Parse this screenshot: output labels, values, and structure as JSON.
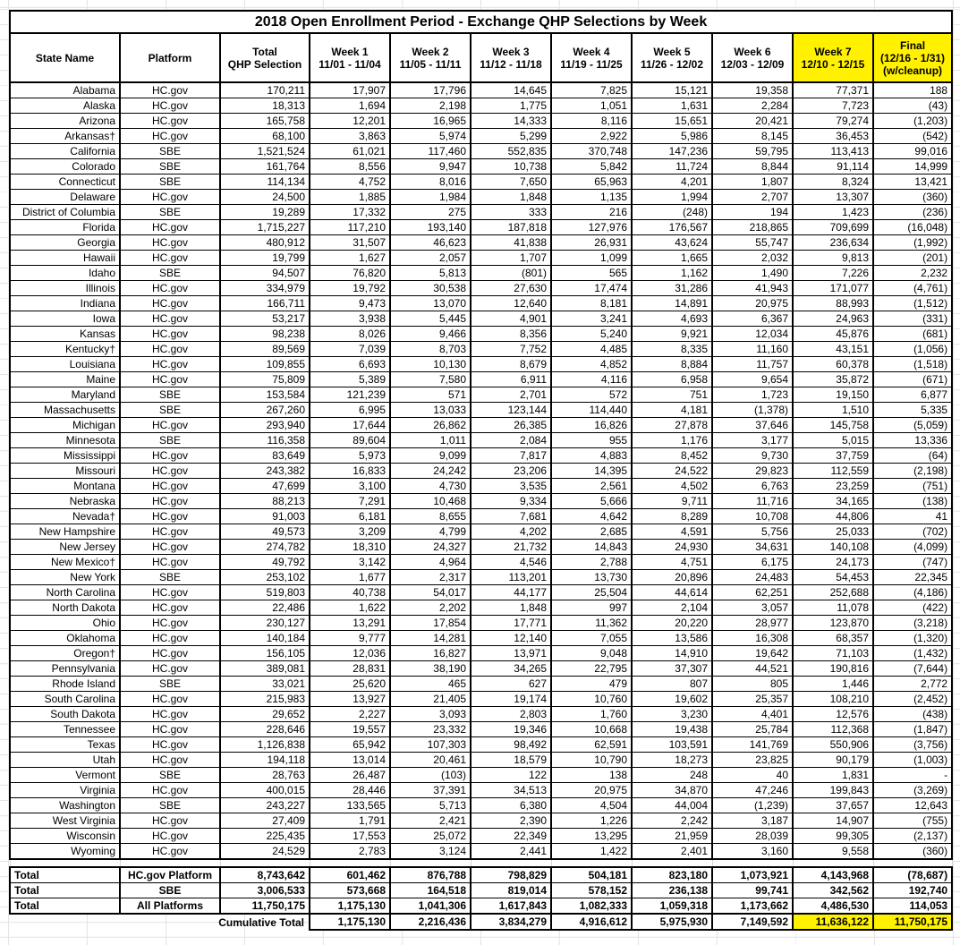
{
  "title": "2018 Open Enrollment Period - Exchange QHP Selections by Week",
  "colors": {
    "highlight": "#FFF100"
  },
  "columns": [
    "State Name",
    "Platform",
    "Total\nQHP Selection",
    "Week 1\n11/01 - 11/04",
    "Week 2\n11/05 - 11/11",
    "Week 3\n11/12 - 11/18",
    "Week 4\n11/19 - 11/25",
    "Week 5\n11/26 - 12/02",
    "Week 6\n12/03 - 12/09",
    "Week 7\n12/10 - 12/15",
    "Final\n(12/16 - 1/31)\n(w/cleanup)"
  ],
  "rows": [
    [
      "Alabama",
      "HC.gov",
      "170,211",
      "17,907",
      "17,796",
      "14,645",
      "7,825",
      "15,121",
      "19,358",
      "77,371",
      "188"
    ],
    [
      "Alaska",
      "HC.gov",
      "18,313",
      "1,694",
      "2,198",
      "1,775",
      "1,051",
      "1,631",
      "2,284",
      "7,723",
      "(43)"
    ],
    [
      "Arizona",
      "HC.gov",
      "165,758",
      "12,201",
      "16,965",
      "14,333",
      "8,116",
      "15,651",
      "20,421",
      "79,274",
      "(1,203)"
    ],
    [
      "Arkansas†",
      "HC.gov",
      "68,100",
      "3,863",
      "5,974",
      "5,299",
      "2,922",
      "5,986",
      "8,145",
      "36,453",
      "(542)"
    ],
    [
      "California",
      "SBE",
      "1,521,524",
      "61,021",
      "117,460",
      "552,835",
      "370,748",
      "147,236",
      "59,795",
      "113,413",
      "99,016"
    ],
    [
      "Colorado",
      "SBE",
      "161,764",
      "8,556",
      "9,947",
      "10,738",
      "5,842",
      "11,724",
      "8,844",
      "91,114",
      "14,999"
    ],
    [
      "Connecticut",
      "SBE",
      "114,134",
      "4,752",
      "8,016",
      "7,650",
      "65,963",
      "4,201",
      "1,807",
      "8,324",
      "13,421"
    ],
    [
      "Delaware",
      "HC.gov",
      "24,500",
      "1,885",
      "1,984",
      "1,848",
      "1,135",
      "1,994",
      "2,707",
      "13,307",
      "(360)"
    ],
    [
      "District of Columbia",
      "SBE",
      "19,289",
      "17,332",
      "275",
      "333",
      "216",
      "(248)",
      "194",
      "1,423",
      "(236)"
    ],
    [
      "Florida",
      "HC.gov",
      "1,715,227",
      "117,210",
      "193,140",
      "187,818",
      "127,976",
      "176,567",
      "218,865",
      "709,699",
      "(16,048)"
    ],
    [
      "Georgia",
      "HC.gov",
      "480,912",
      "31,507",
      "46,623",
      "41,838",
      "26,931",
      "43,624",
      "55,747",
      "236,634",
      "(1,992)"
    ],
    [
      "Hawaii",
      "HC.gov",
      "19,799",
      "1,627",
      "2,057",
      "1,707",
      "1,099",
      "1,665",
      "2,032",
      "9,813",
      "(201)"
    ],
    [
      "Idaho",
      "SBE",
      "94,507",
      "76,820",
      "5,813",
      "(801)",
      "565",
      "1,162",
      "1,490",
      "7,226",
      "2,232"
    ],
    [
      "Illinois",
      "HC.gov",
      "334,979",
      "19,792",
      "30,538",
      "27,630",
      "17,474",
      "31,286",
      "41,943",
      "171,077",
      "(4,761)"
    ],
    [
      "Indiana",
      "HC.gov",
      "166,711",
      "9,473",
      "13,070",
      "12,640",
      "8,181",
      "14,891",
      "20,975",
      "88,993",
      "(1,512)"
    ],
    [
      "Iowa",
      "HC.gov",
      "53,217",
      "3,938",
      "5,445",
      "4,901",
      "3,241",
      "4,693",
      "6,367",
      "24,963",
      "(331)"
    ],
    [
      "Kansas",
      "HC.gov",
      "98,238",
      "8,026",
      "9,466",
      "8,356",
      "5,240",
      "9,921",
      "12,034",
      "45,876",
      "(681)"
    ],
    [
      "Kentucky†",
      "HC.gov",
      "89,569",
      "7,039",
      "8,703",
      "7,752",
      "4,485",
      "8,335",
      "11,160",
      "43,151",
      "(1,056)"
    ],
    [
      "Louisiana",
      "HC.gov",
      "109,855",
      "6,693",
      "10,130",
      "8,679",
      "4,852",
      "8,884",
      "11,757",
      "60,378",
      "(1,518)"
    ],
    [
      "Maine",
      "HC.gov",
      "75,809",
      "5,389",
      "7,580",
      "6,911",
      "4,116",
      "6,958",
      "9,654",
      "35,872",
      "(671)"
    ],
    [
      "Maryland",
      "SBE",
      "153,584",
      "121,239",
      "571",
      "2,701",
      "572",
      "751",
      "1,723",
      "19,150",
      "6,877"
    ],
    [
      "Massachusetts",
      "SBE",
      "267,260",
      "6,995",
      "13,033",
      "123,144",
      "114,440",
      "4,181",
      "(1,378)",
      "1,510",
      "5,335"
    ],
    [
      "Michigan",
      "HC.gov",
      "293,940",
      "17,644",
      "26,862",
      "26,385",
      "16,826",
      "27,878",
      "37,646",
      "145,758",
      "(5,059)"
    ],
    [
      "Minnesota",
      "SBE",
      "116,358",
      "89,604",
      "1,011",
      "2,084",
      "955",
      "1,176",
      "3,177",
      "5,015",
      "13,336"
    ],
    [
      "Mississippi",
      "HC.gov",
      "83,649",
      "5,973",
      "9,099",
      "7,817",
      "4,883",
      "8,452",
      "9,730",
      "37,759",
      "(64)"
    ],
    [
      "Missouri",
      "HC.gov",
      "243,382",
      "16,833",
      "24,242",
      "23,206",
      "14,395",
      "24,522",
      "29,823",
      "112,559",
      "(2,198)"
    ],
    [
      "Montana",
      "HC.gov",
      "47,699",
      "3,100",
      "4,730",
      "3,535",
      "2,561",
      "4,502",
      "6,763",
      "23,259",
      "(751)"
    ],
    [
      "Nebraska",
      "HC.gov",
      "88,213",
      "7,291",
      "10,468",
      "9,334",
      "5,666",
      "9,711",
      "11,716",
      "34,165",
      "(138)"
    ],
    [
      "Nevada†",
      "HC.gov",
      "91,003",
      "6,181",
      "8,655",
      "7,681",
      "4,642",
      "8,289",
      "10,708",
      "44,806",
      "41"
    ],
    [
      "New Hampshire",
      "HC.gov",
      "49,573",
      "3,209",
      "4,799",
      "4,202",
      "2,685",
      "4,591",
      "5,756",
      "25,033",
      "(702)"
    ],
    [
      "New Jersey",
      "HC.gov",
      "274,782",
      "18,310",
      "24,327",
      "21,732",
      "14,843",
      "24,930",
      "34,631",
      "140,108",
      "(4,099)"
    ],
    [
      "New Mexico†",
      "HC.gov",
      "49,792",
      "3,142",
      "4,964",
      "4,546",
      "2,788",
      "4,751",
      "6,175",
      "24,173",
      "(747)"
    ],
    [
      "New York",
      "SBE",
      "253,102",
      "1,677",
      "2,317",
      "113,201",
      "13,730",
      "20,896",
      "24,483",
      "54,453",
      "22,345"
    ],
    [
      "North Carolina",
      "HC.gov",
      "519,803",
      "40,738",
      "54,017",
      "44,177",
      "25,504",
      "44,614",
      "62,251",
      "252,688",
      "(4,186)"
    ],
    [
      "North Dakota",
      "HC.gov",
      "22,486",
      "1,622",
      "2,202",
      "1,848",
      "997",
      "2,104",
      "3,057",
      "11,078",
      "(422)"
    ],
    [
      "Ohio",
      "HC.gov",
      "230,127",
      "13,291",
      "17,854",
      "17,771",
      "11,362",
      "20,220",
      "28,977",
      "123,870",
      "(3,218)"
    ],
    [
      "Oklahoma",
      "HC.gov",
      "140,184",
      "9,777",
      "14,281",
      "12,140",
      "7,055",
      "13,586",
      "16,308",
      "68,357",
      "(1,320)"
    ],
    [
      "Oregon†",
      "HC.gov",
      "156,105",
      "12,036",
      "16,827",
      "13,971",
      "9,048",
      "14,910",
      "19,642",
      "71,103",
      "(1,432)"
    ],
    [
      "Pennsylvania",
      "HC.gov",
      "389,081",
      "28,831",
      "38,190",
      "34,265",
      "22,795",
      "37,307",
      "44,521",
      "190,816",
      "(7,644)"
    ],
    [
      "Rhode Island",
      "SBE",
      "33,021",
      "25,620",
      "465",
      "627",
      "479",
      "807",
      "805",
      "1,446",
      "2,772"
    ],
    [
      "South Carolina",
      "HC.gov",
      "215,983",
      "13,927",
      "21,405",
      "19,174",
      "10,760",
      "19,602",
      "25,357",
      "108,210",
      "(2,452)"
    ],
    [
      "South Dakota",
      "HC.gov",
      "29,652",
      "2,227",
      "3,093",
      "2,803",
      "1,760",
      "3,230",
      "4,401",
      "12,576",
      "(438)"
    ],
    [
      "Tennessee",
      "HC.gov",
      "228,646",
      "19,557",
      "23,332",
      "19,346",
      "10,668",
      "19,438",
      "25,784",
      "112,368",
      "(1,847)"
    ],
    [
      "Texas",
      "HC.gov",
      "1,126,838",
      "65,942",
      "107,303",
      "98,492",
      "62,591",
      "103,591",
      "141,769",
      "550,906",
      "(3,756)"
    ],
    [
      "Utah",
      "HC.gov",
      "194,118",
      "13,014",
      "20,461",
      "18,579",
      "10,790",
      "18,273",
      "23,825",
      "90,179",
      "(1,003)"
    ],
    [
      "Vermont",
      "SBE",
      "28,763",
      "26,487",
      "(103)",
      "122",
      "138",
      "248",
      "40",
      "1,831",
      "-"
    ],
    [
      "Virginia",
      "HC.gov",
      "400,015",
      "28,446",
      "37,391",
      "34,513",
      "20,975",
      "34,870",
      "47,246",
      "199,843",
      "(3,269)"
    ],
    [
      "Washington",
      "SBE",
      "243,227",
      "133,565",
      "5,713",
      "6,380",
      "4,504",
      "44,004",
      "(1,239)",
      "37,657",
      "12,643"
    ],
    [
      "West Virginia",
      "HC.gov",
      "27,409",
      "1,791",
      "2,421",
      "2,390",
      "1,226",
      "2,242",
      "3,187",
      "14,907",
      "(755)"
    ],
    [
      "Wisconsin",
      "HC.gov",
      "225,435",
      "17,553",
      "25,072",
      "22,349",
      "13,295",
      "21,959",
      "28,039",
      "99,305",
      "(2,137)"
    ],
    [
      "Wyoming",
      "HC.gov",
      "24,529",
      "2,783",
      "3,124",
      "2,441",
      "1,422",
      "2,401",
      "3,160",
      "9,558",
      "(360)"
    ]
  ],
  "totals": [
    [
      "Total",
      "HC.gov Platform",
      "8,743,642",
      "601,462",
      "876,788",
      "798,829",
      "504,181",
      "823,180",
      "1,073,921",
      "4,143,968",
      "(78,687)"
    ],
    [
      "Total",
      "SBE",
      "3,006,533",
      "573,668",
      "164,518",
      "819,014",
      "578,152",
      "236,138",
      "99,741",
      "342,562",
      "192,740"
    ],
    [
      "Total",
      "All Platforms",
      "11,750,175",
      "1,175,130",
      "1,041,306",
      "1,617,843",
      "1,082,333",
      "1,059,318",
      "1,173,662",
      "4,486,530",
      "114,053"
    ]
  ],
  "cumulative": {
    "label": "Cumulative Total",
    "values": [
      "1,175,130",
      "2,216,436",
      "3,834,279",
      "4,916,612",
      "5,975,930",
      "7,149,592",
      "11,636,122",
      "11,750,175"
    ]
  }
}
